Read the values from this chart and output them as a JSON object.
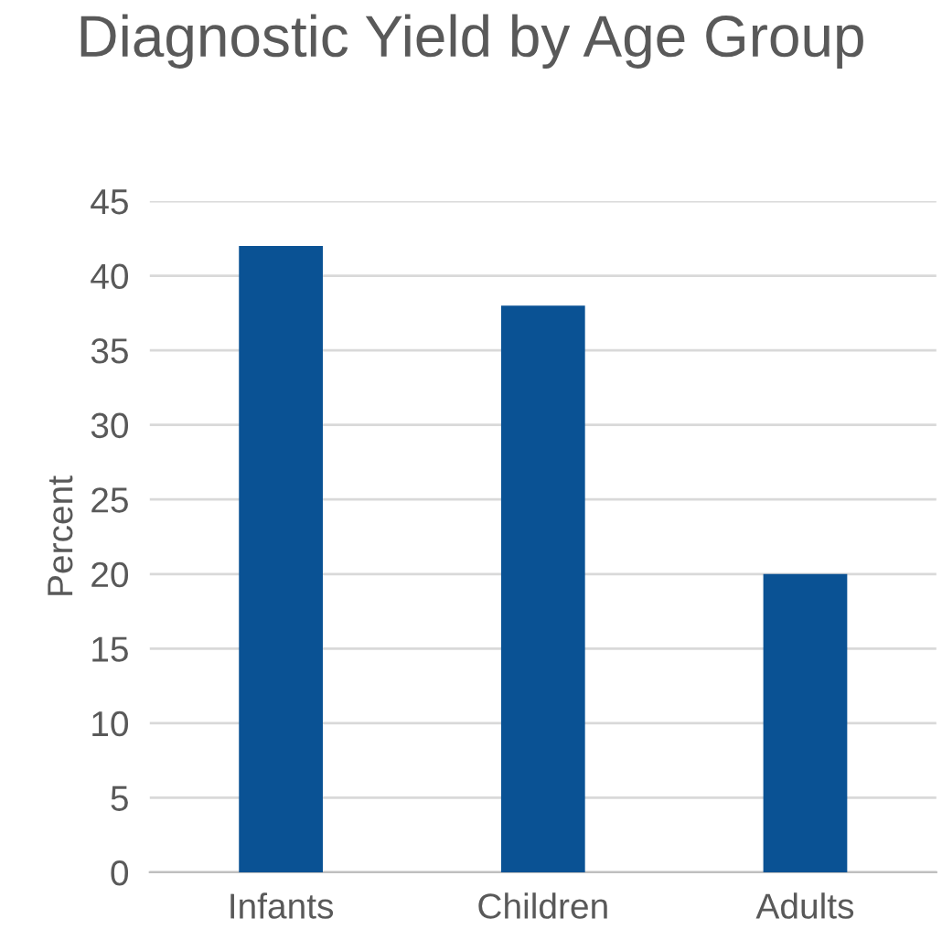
{
  "chart_data": {
    "type": "bar",
    "title": "Diagnostic Yield by Age Group",
    "ylabel": "Percent",
    "categories": [
      "Infants",
      "Children",
      "Adults"
    ],
    "values": [
      42,
      38,
      20
    ],
    "color": "#0a5294",
    "ylim": [
      0,
      45
    ],
    "yticks": [
      0,
      5,
      10,
      15,
      20,
      25,
      30,
      35,
      40,
      45
    ],
    "grid": "y"
  }
}
